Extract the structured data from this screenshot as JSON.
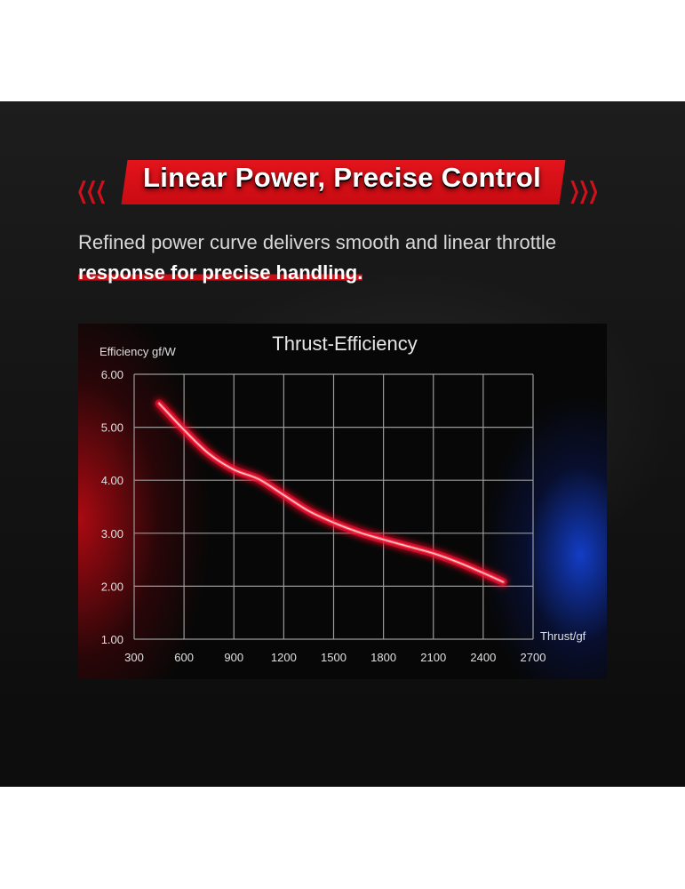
{
  "header": {
    "title": "Linear Power, Precise Control",
    "chevrons_left": "❮❮❮",
    "chevrons_right": "❯❯❯"
  },
  "subtitle": {
    "plain": "Refined power curve delivers smooth and linear throttle ",
    "highlight": "response for precise handling."
  },
  "colors": {
    "accent": "#d0101a",
    "curve": "#ff4a5e",
    "grid": "#9a9a9a",
    "text": "#d9d9d9"
  },
  "chart_data": {
    "type": "line",
    "title": "Thrust-Efficiency",
    "xlabel": "Thrust/gf",
    "ylabel": "Efficiency gf/W",
    "xlim": [
      300,
      2700
    ],
    "ylim": [
      1,
      6
    ],
    "xticks": [
      "300",
      "600",
      "900",
      "1200",
      "1500",
      "1800",
      "2100",
      "2400",
      "2700"
    ],
    "yticks": [
      "1.00",
      "2.00",
      "3.00",
      "4.00",
      "5.00",
      "6.00"
    ],
    "grid": true,
    "series": [
      {
        "x": [
          450,
          600,
          750,
          900,
          1050,
          1200,
          1350,
          1500,
          1650,
          1800,
          1950,
          2100,
          2250,
          2400,
          2520
        ],
        "y": [
          5.45,
          4.95,
          4.5,
          4.2,
          4.02,
          3.72,
          3.42,
          3.2,
          3.02,
          2.88,
          2.75,
          2.62,
          2.45,
          2.25,
          2.08
        ]
      }
    ]
  }
}
